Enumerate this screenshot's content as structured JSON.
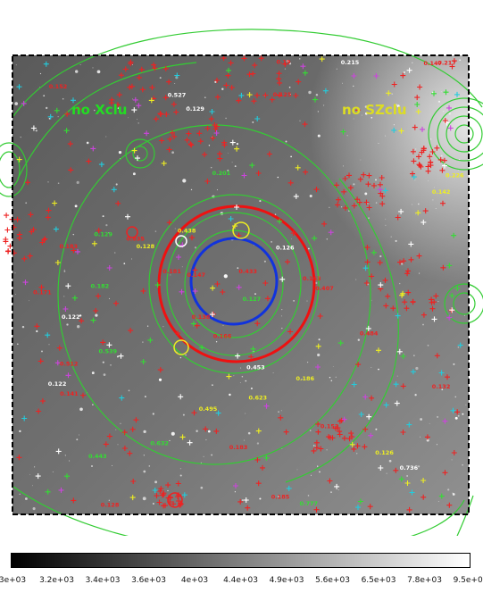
{
  "labels": {
    "left": "no Xclu",
    "right": "no SZclu"
  },
  "colorbar": {
    "ticks": [
      "3e+03",
      "3.2e+03",
      "3.4e+03",
      "3.6e+03",
      "4e+03",
      "4.4e+03",
      "4.9e+03",
      "5.6e+03",
      "6.5e+03",
      "7.8e+03",
      "9.5e+03"
    ],
    "gradient_start": "#000000",
    "gradient_end": "#ffffff"
  },
  "colors": {
    "galaxy_red": "#ee2222",
    "galaxy_yellow": "#eeee22",
    "galaxy_white": "#ffffff",
    "galaxy_cyan": "#22ccdd",
    "galaxy_green": "#33dd33",
    "galaxy_magenta": "#cc44dd",
    "contour_green": "#33cc33",
    "circle_red": "#ee1111",
    "circle_blue": "#1133dd"
  },
  "redshift_labels": [
    "0.217",
    "0.126",
    "0.142",
    "0.147",
    "0.201",
    "0.166",
    "0.152",
    "0.215",
    "0.186",
    "0.138",
    "0.182",
    "0.181",
    "0.141",
    "0.122",
    "0.128",
    "0.19",
    "0.127",
    "0.183",
    "0.171",
    "0.129",
    "0.226",
    "0.185",
    "0.129",
    "0.183",
    "0.153",
    "0.122",
    "0.126",
    "0.163",
    "0.777",
    "0.835",
    "0.132",
    "0.736",
    "0.438",
    "0.433",
    "0.632",
    "0.147",
    "0.128",
    "0.453",
    "0.623",
    "0.512",
    "0.539",
    "0.407",
    "0.484",
    "0.527",
    "0.495",
    "0.125",
    "0.443"
  ]
}
